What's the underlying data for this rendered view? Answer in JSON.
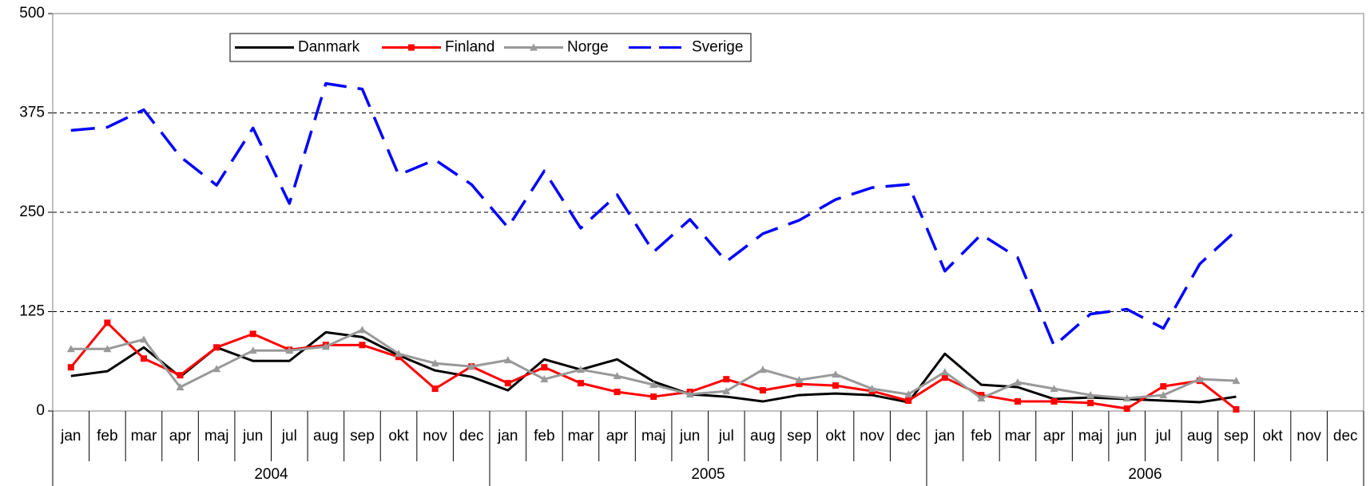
{
  "chart_data": {
    "type": "line",
    "categories": [
      "jan",
      "feb",
      "mar",
      "apr",
      "maj",
      "jun",
      "jul",
      "aug",
      "sep",
      "okt",
      "nov",
      "dec",
      "jan",
      "feb",
      "mar",
      "apr",
      "maj",
      "jun",
      "jul",
      "aug",
      "sep",
      "okt",
      "nov",
      "dec",
      "jan",
      "feb",
      "mar",
      "apr",
      "maj",
      "jun",
      "jul",
      "aug",
      "sep",
      "okt",
      "nov",
      "dec"
    ],
    "years": [
      "2004",
      "2005",
      "2006"
    ],
    "ylim": [
      0,
      500
    ],
    "yticks": [
      0,
      125,
      250,
      375,
      500
    ],
    "grid": true,
    "legend": "top-left",
    "series": [
      {
        "name": "Danmark",
        "color": "#000000",
        "marker": "none",
        "dashed": false,
        "values": [
          44,
          50,
          80,
          43,
          80,
          63,
          63,
          99,
          93,
          70,
          51,
          43,
          26,
          65,
          52,
          65,
          37,
          21,
          18,
          12,
          20,
          22,
          20,
          11,
          72,
          33,
          30,
          15,
          17,
          15,
          13,
          11,
          18,
          null,
          null,
          null
        ]
      },
      {
        "name": "Finland",
        "color": "#ff0000",
        "marker": "square",
        "dashed": false,
        "values": [
          55,
          111,
          66,
          45,
          80,
          97,
          77,
          83,
          83,
          68,
          28,
          56,
          35,
          55,
          35,
          24,
          18,
          24,
          40,
          26,
          34,
          32,
          25,
          13,
          42,
          20,
          12,
          12,
          10,
          3,
          31,
          38,
          2,
          null,
          null,
          null
        ]
      },
      {
        "name": "Norge",
        "color": "#999999",
        "marker": "triangle",
        "dashed": false,
        "values": [
          78,
          78,
          90,
          30,
          53,
          76,
          76,
          81,
          102,
          72,
          60,
          56,
          64,
          40,
          52,
          44,
          33,
          21,
          25,
          52,
          39,
          46,
          28,
          21,
          49,
          16,
          36,
          28,
          20,
          16,
          20,
          40,
          38,
          null,
          null,
          null
        ]
      },
      {
        "name": "Sverige",
        "color": "#0000ff",
        "marker": "none",
        "dashed": true,
        "values": [
          353,
          357,
          379,
          320,
          284,
          356,
          261,
          412,
          405,
          297,
          316,
          285,
          231,
          302,
          230,
          272,
          200,
          241,
          188,
          223,
          240,
          266,
          281,
          285,
          176,
          222,
          193,
          82,
          122,
          128,
          104,
          185,
          227,
          null,
          null,
          null
        ]
      }
    ]
  }
}
